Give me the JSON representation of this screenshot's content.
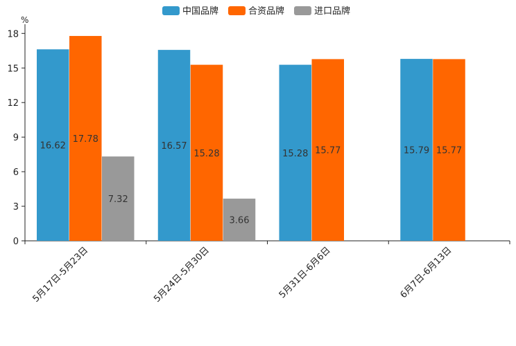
{
  "chart_data": {
    "type": "bar",
    "unit_label": "%",
    "categories": [
      "5月17日-5月23日",
      "5月24日-5月30日",
      "5月31日-6月6日",
      "6月7日-6月13日"
    ],
    "series": [
      {
        "name": "中国品牌",
        "color": "#3399cc",
        "values": [
          16.62,
          16.57,
          15.28,
          15.79
        ]
      },
      {
        "name": "合资品牌",
        "color": "#ff6600",
        "values": [
          17.78,
          15.28,
          15.77,
          15.77
        ]
      },
      {
        "name": "进口品牌",
        "color": "#999999",
        "values": [
          7.32,
          3.66,
          null,
          null
        ]
      }
    ],
    "ylim": [
      0,
      20
    ],
    "yticks": [
      0,
      3,
      6,
      9,
      12,
      15,
      18
    ],
    "legend_position": "top-center",
    "grid": false
  }
}
